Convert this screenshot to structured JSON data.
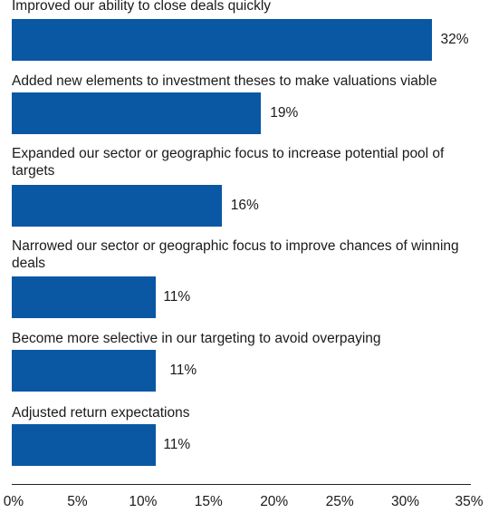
{
  "chart_data": {
    "type": "bar",
    "orientation": "horizontal",
    "title": "",
    "xlabel": "",
    "ylabel": "",
    "xlim": [
      0,
      35
    ],
    "categories": [
      "Improved our ability to close deals quickly",
      "Added new elements to investment theses to make valuations viable",
      "Expanded our sector or geographic focus to increase potential pool of targets",
      "Narrowed our sector or geographic focus to improve chances of winning deals",
      "Become more selective in our targeting to avoid overpaying",
      "Adjusted return expectations"
    ],
    "values": [
      32,
      19,
      16,
      11,
      11,
      11
    ],
    "value_labels": [
      "32%",
      "19%",
      "16%",
      "11%",
      "11%",
      "11%"
    ],
    "x_ticks": [
      0,
      5,
      10,
      15,
      20,
      25,
      30,
      35
    ],
    "x_tick_labels": [
      "0%",
      "5%",
      "10%",
      "15%",
      "20%",
      "25%",
      "30%",
      "35%"
    ],
    "grid": false,
    "legend": "none",
    "bar_color": "#0a57a4"
  }
}
